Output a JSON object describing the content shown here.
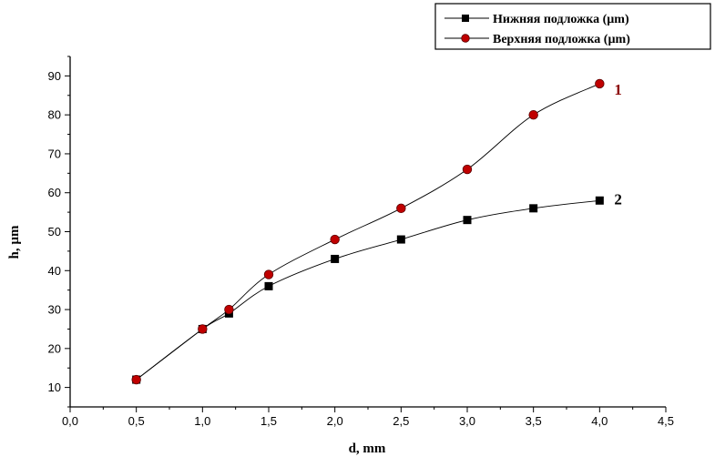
{
  "chart_data": {
    "type": "scatter",
    "title": "",
    "xlabel": "d, mm",
    "ylabel": "h, µm",
    "xlim": [
      0.0,
      4.5
    ],
    "ylim": [
      5,
      95
    ],
    "x_ticks": [
      "0,0",
      "0,5",
      "1,0",
      "1,5",
      "2,0",
      "2,5",
      "3,0",
      "3,5",
      "4,0",
      "4,5"
    ],
    "y_ticks": [
      "10",
      "20",
      "30",
      "40",
      "50",
      "60",
      "70",
      "80",
      "90"
    ],
    "grid": false,
    "legend_position": "top-right",
    "series": [
      {
        "name": "Нижняя подложка (µm)",
        "marker": "square",
        "color": "#000000",
        "curve_label": "2",
        "x": [
          0.5,
          1.0,
          1.2,
          1.5,
          2.0,
          2.5,
          3.0,
          3.5,
          4.0
        ],
        "y": [
          12,
          25,
          29,
          36,
          43,
          48,
          53,
          56,
          58
        ]
      },
      {
        "name": "Верхняя подложка (µm)",
        "marker": "circle",
        "color": "#c00000",
        "curve_label": "1",
        "x": [
          0.5,
          1.0,
          1.2,
          1.5,
          2.0,
          2.5,
          3.0,
          3.5,
          4.0
        ],
        "y": [
          12,
          25,
          30,
          39,
          48,
          56,
          66,
          80,
          88
        ]
      }
    ]
  }
}
